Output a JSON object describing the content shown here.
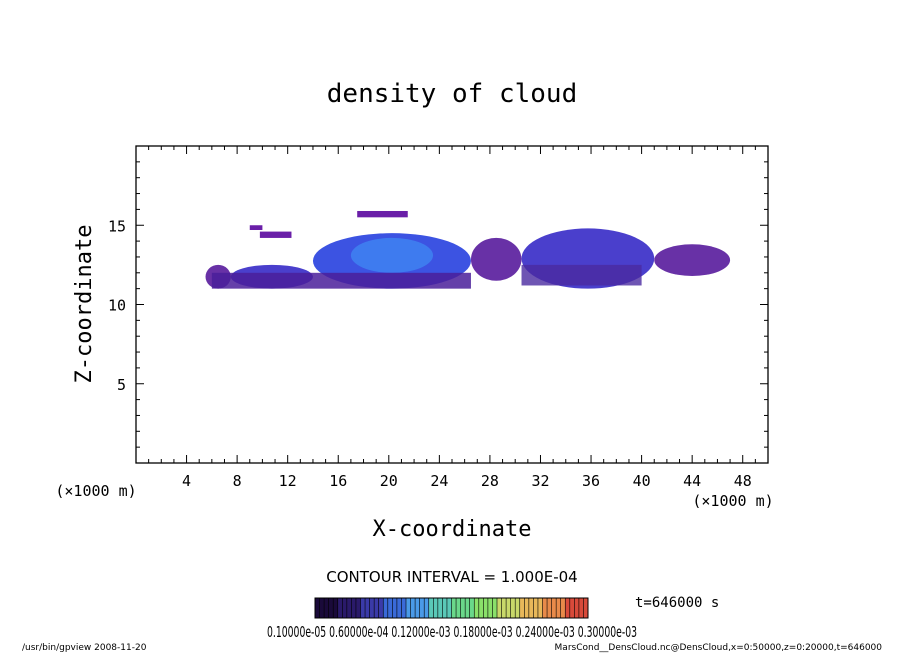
{
  "chart_data": {
    "type": "heatmap",
    "title": "density of cloud",
    "xlabel": "X-coordinate",
    "ylabel": "Z-coordinate",
    "x_unit_left": "(×1000 m)",
    "x_unit_right": "(×1000 m)",
    "xlim": [
      0,
      50
    ],
    "ylim": [
      0,
      20
    ],
    "x_ticks": [
      "4",
      "8",
      "12",
      "16",
      "20",
      "24",
      "28",
      "32",
      "36",
      "40",
      "44",
      "48"
    ],
    "y_ticks": [
      "5",
      "10",
      "15"
    ],
    "contour_interval": "CONTOUR INTERVAL = 1.000E-04",
    "time_label": "t=646000 s",
    "colorbar_labels": "0.10000e-05 0.60000e-04 0.12000e-03 0.18000e-03 0.24000e-03 0.30000e-03",
    "colorbar_colors": [
      "#1a0a3a",
      "#2a1a6a",
      "#3a3aa8",
      "#3a6ad8",
      "#4a9ae8",
      "#5ac8b8",
      "#6ad88a",
      "#8ae06a",
      "#c8d86a",
      "#e8b85a",
      "#e88a4a",
      "#d84a3a"
    ],
    "cloud_regions": [
      {
        "x": [
          5.5,
          7.5
        ],
        "z": [
          11.0,
          12.5
        ],
        "level": "low"
      },
      {
        "x": [
          7.5,
          14.0
        ],
        "z": [
          11.0,
          12.5
        ],
        "level": "mid"
      },
      {
        "x": [
          14.0,
          26.5
        ],
        "z": [
          11.0,
          14.5
        ],
        "level": "high"
      },
      {
        "x": [
          17.0,
          23.5
        ],
        "z": [
          12.0,
          14.2
        ],
        "level": "peak"
      },
      {
        "x": [
          26.5,
          30.5
        ],
        "z": [
          11.5,
          14.2
        ],
        "level": "low"
      },
      {
        "x": [
          30.5,
          41.0
        ],
        "z": [
          11.0,
          14.8
        ],
        "level": "mid"
      },
      {
        "x": [
          41.0,
          47.0
        ],
        "z": [
          11.8,
          13.8
        ],
        "level": "low"
      }
    ]
  },
  "footer": {
    "left": "/usr/bin/gpview  2008-11-20",
    "right": "MarsCond__DensCloud.nc@DensCloud,x=0:50000,z=0:20000,t=646000"
  }
}
